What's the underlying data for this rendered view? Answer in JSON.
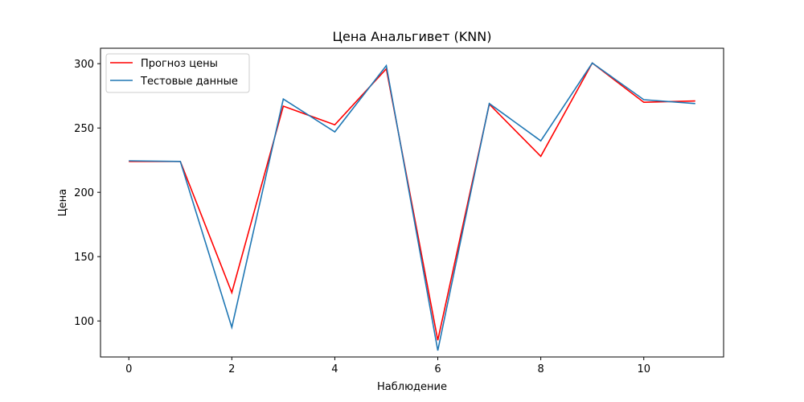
{
  "chart_data": {
    "type": "line",
    "title": "Цена Анальгивет (KNN)",
    "xlabel": "Наблюдение",
    "ylabel": "Цена",
    "x": [
      0,
      1,
      2,
      3,
      4,
      5,
      6,
      7,
      8,
      9,
      10,
      11
    ],
    "xlim": [
      -0.55,
      11.55
    ],
    "ylim": [
      72,
      312
    ],
    "xticks": [
      0,
      2,
      4,
      6,
      8,
      10
    ],
    "yticks": [
      100,
      150,
      200,
      250,
      300
    ],
    "grid": false,
    "legend_position": "upper left",
    "series": [
      {
        "name": "Прогноз цены",
        "color": "#ff0000",
        "values": [
          224,
          224,
          122,
          267,
          252.5,
          296,
          85,
          268.5,
          228,
          300.5,
          270,
          271
        ]
      },
      {
        "name": "Тестовые данные",
        "color": "#1f77b4",
        "values": [
          224.5,
          224,
          95,
          272.5,
          247,
          298.5,
          77,
          269,
          240,
          300.5,
          272,
          269
        ]
      }
    ]
  }
}
